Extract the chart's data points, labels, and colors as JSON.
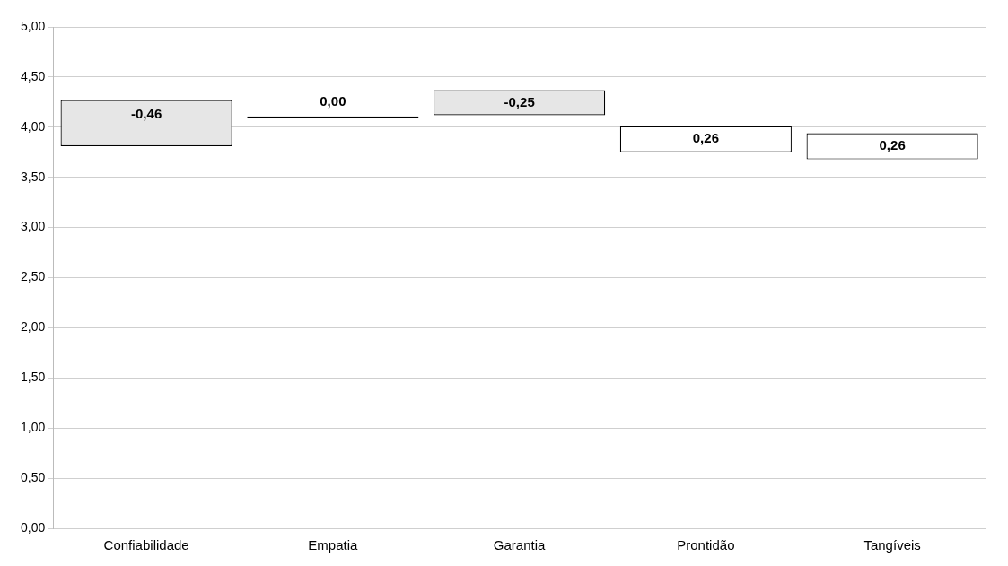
{
  "chart_data": {
    "type": "bar",
    "categories": [
      "Confiabilidade",
      "Empatia",
      "Garantia",
      "Prontidão",
      "Tangíveis"
    ],
    "base": [
      4.27,
      4.09,
      4.37,
      3.75,
      3.68
    ],
    "values": [
      -0.46,
      0,
      -0.25,
      0.26,
      0.26
    ],
    "colors": [
      "#e6e6e6",
      "#000000",
      "#e6e6e6",
      "#ffffff",
      "#ffffff"
    ],
    "value_labels": [
      "-0,46",
      "0,00",
      "-0,25",
      "0,26",
      "0,26"
    ],
    "ylim": [
      0,
      5
    ],
    "yticks": [
      {
        "value": 0,
        "label": "0,00"
      },
      {
        "value": 0.5,
        "label": "0,50"
      },
      {
        "value": 1,
        "label": "1,00"
      },
      {
        "value": 1.5,
        "label": "1,50"
      },
      {
        "value": 2,
        "label": "2,00"
      },
      {
        "value": 2.5,
        "label": "2,50"
      },
      {
        "value": 3,
        "label": "3,00"
      },
      {
        "value": 3.5,
        "label": "3,50"
      },
      {
        "value": 4,
        "label": "4,00"
      },
      {
        "value": 4.5,
        "label": "4,50"
      },
      {
        "value": 5,
        "label": "5,00"
      }
    ],
    "grid": "y"
  }
}
